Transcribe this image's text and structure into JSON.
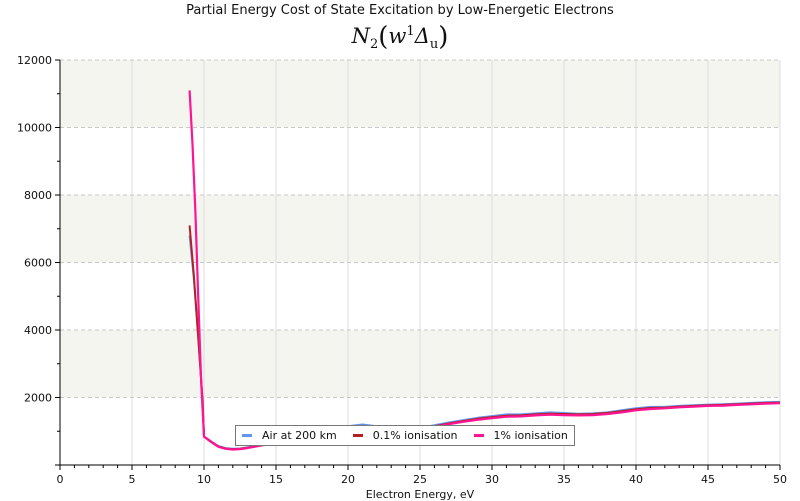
{
  "chart_data": {
    "type": "line",
    "title": "Partial Energy Cost of State Excitation by Low-Energetic Electrons",
    "subtitle": {
      "base": "N",
      "sub": "2",
      "open": "(",
      "state": "w",
      "sup": "1",
      "term": "Δ",
      "term_sub": "u",
      "close": ")"
    },
    "xlabel": "Electron Energy, eV",
    "ylabel": "",
    "xlim": [
      0,
      50
    ],
    "ylim": [
      0,
      12000
    ],
    "x_ticks": [
      0,
      5,
      10,
      15,
      20,
      25,
      30,
      35,
      40,
      45,
      50
    ],
    "y_ticks": [
      2000,
      4000,
      6000,
      8000,
      10000,
      12000
    ],
    "grid": true,
    "legend_position": "bottom-center",
    "series": [
      {
        "name": "Air at 200 km",
        "color": "#6495ed",
        "x": [
          9.0,
          9.3,
          9.6,
          9.9,
          10.0,
          10.5,
          11.0,
          11.5,
          12.0,
          12.5,
          13.0,
          14.0,
          15.0,
          16.0,
          17.0,
          18.0,
          19.0,
          20.0,
          21.0,
          22.0,
          23.0,
          24.0,
          25.0,
          26.0,
          27.0,
          28.0,
          29.0,
          30.0,
          31.0,
          32.0,
          33.0,
          34.0,
          35.0,
          36.0,
          37.0,
          38.0,
          39.0,
          40.0,
          41.0,
          42.0,
          43.0,
          44.0,
          45.0,
          46.0,
          47.0,
          48.0,
          49.0,
          50.0
        ],
        "y": [
          6800,
          5500,
          3800,
          1900,
          850,
          700,
          560,
          500,
          480,
          490,
          520,
          600,
          680,
          760,
          850,
          950,
          1050,
          1150,
          1200,
          1150,
          1100,
          1050,
          1100,
          1180,
          1260,
          1330,
          1400,
          1450,
          1500,
          1500,
          1530,
          1560,
          1540,
          1520,
          1530,
          1560,
          1620,
          1680,
          1720,
          1720,
          1750,
          1770,
          1790,
          1800,
          1820,
          1840,
          1860,
          1870
        ]
      },
      {
        "name": "0.1% ionisation",
        "color": "#b22222",
        "x": [
          9.0,
          9.3,
          9.6,
          9.9,
          10.0,
          10.5,
          11.0,
          11.5,
          12.0,
          12.5,
          13.0,
          14.0,
          15.0,
          16.0,
          17.0,
          18.0,
          19.0,
          20.0,
          21.0,
          22.0,
          23.0,
          24.0,
          25.0,
          26.0,
          27.0,
          28.0,
          29.0,
          30.0,
          31.0,
          32.0,
          33.0,
          34.0,
          35.0,
          36.0,
          37.0,
          38.0,
          39.0,
          40.0,
          41.0,
          42.0,
          43.0,
          44.0,
          45.0,
          46.0,
          47.0,
          48.0,
          49.0,
          50.0
        ],
        "y": [
          7100,
          5600,
          3800,
          1900,
          840,
          690,
          550,
          490,
          470,
          480,
          510,
          590,
          670,
          750,
          840,
          930,
          1030,
          1120,
          1160,
          1120,
          1080,
          1040,
          1080,
          1150,
          1230,
          1300,
          1370,
          1420,
          1460,
          1470,
          1500,
          1520,
          1510,
          1500,
          1510,
          1540,
          1590,
          1650,
          1690,
          1700,
          1730,
          1750,
          1770,
          1780,
          1800,
          1820,
          1840,
          1850
        ]
      },
      {
        "name": "1% ionisation",
        "color": "#ff1493",
        "x": [
          9.0,
          9.2,
          9.4,
          9.6,
          9.8,
          10.0,
          10.5,
          11.0,
          11.5,
          12.0,
          12.5,
          13.0,
          14.0,
          15.0,
          16.0,
          17.0,
          18.0,
          19.0,
          20.0,
          21.0,
          22.0,
          23.0,
          24.0,
          25.0,
          26.0,
          27.0,
          28.0,
          29.0,
          30.0,
          31.0,
          32.0,
          33.0,
          34.0,
          35.0,
          36.0,
          37.0,
          38.0,
          39.0,
          40.0,
          41.0,
          42.0,
          43.0,
          44.0,
          45.0,
          46.0,
          47.0,
          48.0,
          49.0,
          50.0
        ],
        "y": [
          11100,
          9500,
          7500,
          5000,
          2500,
          840,
          680,
          540,
          480,
          460,
          470,
          500,
          580,
          660,
          740,
          830,
          920,
          1010,
          1100,
          1140,
          1100,
          1060,
          1020,
          1060,
          1130,
          1210,
          1280,
          1340,
          1390,
          1430,
          1440,
          1470,
          1490,
          1480,
          1470,
          1480,
          1510,
          1560,
          1620,
          1660,
          1680,
          1710,
          1730,
          1750,
          1760,
          1780,
          1800,
          1820,
          1830
        ]
      }
    ]
  }
}
